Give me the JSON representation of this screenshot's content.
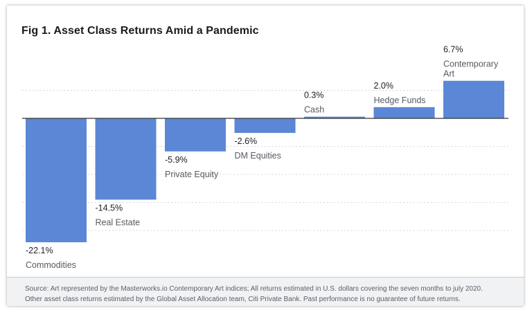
{
  "chart_data": {
    "type": "bar",
    "title": "Fig 1. Asset Class Returns Amid a Pandemic",
    "categories": [
      "Commodities",
      "Real Estate",
      "Private Equity",
      "DM Equities",
      "Cash",
      "Hedge Funds",
      "Contemporary Art"
    ],
    "values": [
      -22.1,
      -14.5,
      -5.9,
      -2.6,
      0.3,
      2.0,
      6.7
    ],
    "value_labels": [
      "-22.1%",
      "-14.5%",
      "-5.9%",
      "-2.6%",
      "0.3%",
      "2.0%",
      "6.7%"
    ],
    "category_lines": [
      [
        "Commodities"
      ],
      [
        "Real Estate"
      ],
      [
        "Private Equity"
      ],
      [
        "DM Equities"
      ],
      [
        "Cash"
      ],
      [
        "Hedge Funds"
      ],
      [
        "Contemporary",
        "Art"
      ]
    ],
    "ylim": [
      -25,
      7.5
    ],
    "gridlines": [
      5,
      -5,
      -10,
      -15,
      -20
    ],
    "grid": true,
    "bar_color": "#5b87d6"
  },
  "footer": {
    "line1": "Source: Art represented by the Masterworks.io Contemporary Art indices; All returns estimated in U.S. dollars covering the seven months to july 2020.",
    "line2": "Other asset class returns estimated by the Global Asset Allocation team, Citi Private Bank. Past performance is no guarantee of future returns."
  }
}
